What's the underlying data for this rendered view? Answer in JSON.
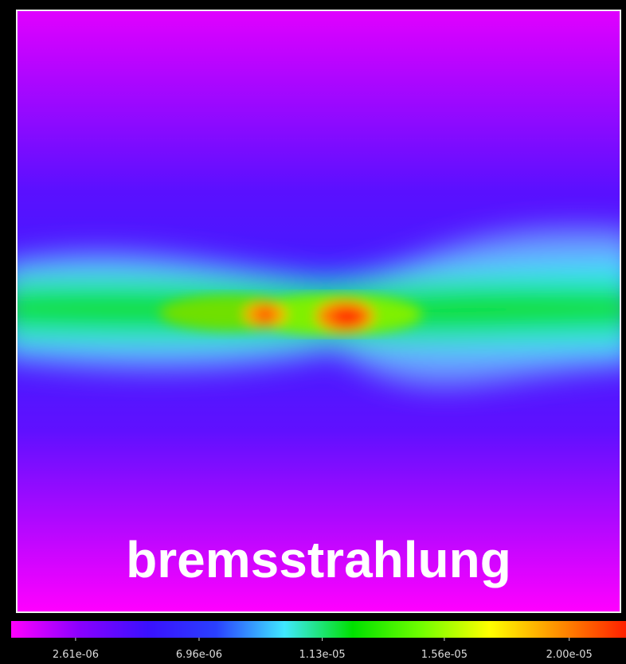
{
  "chart_data": {
    "type": "heatmap",
    "annotation": "bremsstrahlung",
    "colormap": [
      "#ff00ff",
      "#8a00ff",
      "#3a10ff",
      "#2a40ff",
      "#40e8ff",
      "#00e000",
      "#70ff00",
      "#ffff00",
      "#ff9000",
      "#ff2000"
    ],
    "clim": [
      3.4e-07,
      2.2e-05
    ],
    "cticks": [
      {
        "value": 2.61e-06,
        "label": "2.61e-06"
      },
      {
        "value": 6.96e-06,
        "label": "6.96e-06"
      },
      {
        "value": 1.13e-05,
        "label": "1.13e-05"
      },
      {
        "value": 1.56e-05,
        "label": "1.56e-05"
      },
      {
        "value": 2e-05,
        "label": "2.00e-05"
      }
    ]
  }
}
